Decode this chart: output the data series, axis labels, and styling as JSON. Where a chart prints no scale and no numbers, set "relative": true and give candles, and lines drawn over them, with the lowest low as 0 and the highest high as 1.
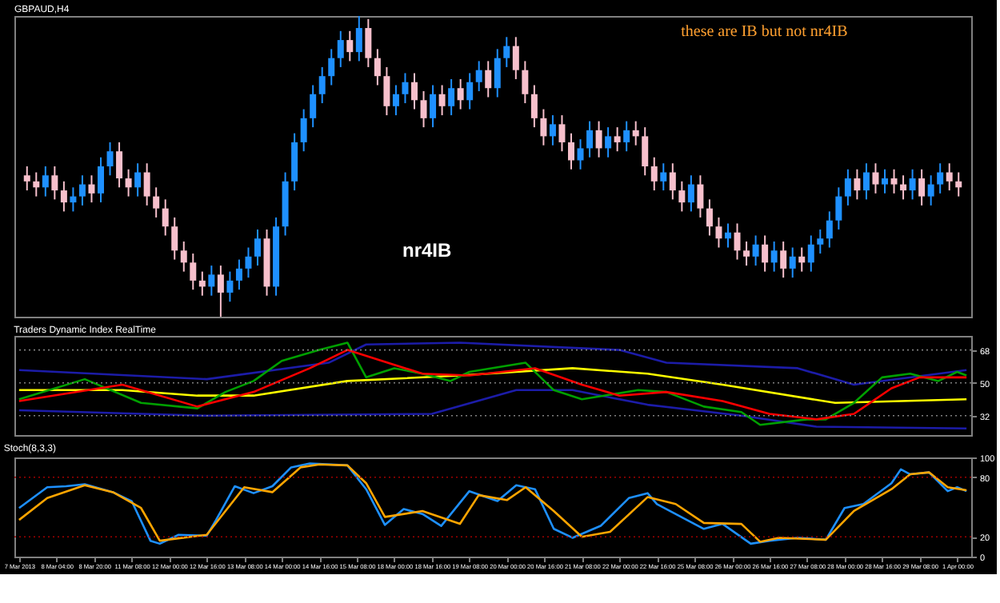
{
  "chart_data": [
    {
      "type": "candlestick",
      "title": "GBPAUD,H4",
      "relative": true,
      "tick_labels": false,
      "categories": [
        null,
        null,
        null,
        null,
        null,
        null,
        null,
        null,
        null,
        null,
        null,
        null,
        null,
        null,
        null,
        null,
        null,
        null,
        null,
        null,
        null,
        null,
        null,
        null,
        null,
        null,
        null,
        null,
        null,
        null,
        null,
        null,
        null,
        null,
        null,
        null,
        null,
        null,
        null,
        null,
        null,
        null,
        null,
        null,
        null,
        null,
        null,
        null,
        null,
        null,
        null,
        null,
        null,
        null,
        null,
        null,
        null,
        null,
        null,
        null,
        null,
        null,
        null,
        null,
        null,
        null,
        null,
        null,
        null,
        null,
        null,
        null,
        null,
        null,
        null,
        null,
        null,
        null,
        null,
        null,
        null,
        null,
        null,
        null,
        null,
        null,
        null,
        null,
        null,
        null,
        null,
        null,
        null,
        null,
        null,
        null,
        null,
        null,
        null,
        null,
        null,
        null
      ],
      "ohlc": [
        [
          0.47,
          0.5,
          0.42,
          0.45
        ],
        [
          0.45,
          0.48,
          0.4,
          0.43
        ],
        [
          0.43,
          0.5,
          0.4,
          0.47
        ],
        [
          0.47,
          0.5,
          0.39,
          0.42
        ],
        [
          0.42,
          0.45,
          0.35,
          0.38
        ],
        [
          0.38,
          0.43,
          0.35,
          0.4
        ],
        [
          0.4,
          0.47,
          0.37,
          0.44
        ],
        [
          0.44,
          0.47,
          0.38,
          0.41
        ],
        [
          0.41,
          0.53,
          0.38,
          0.5
        ],
        [
          0.5,
          0.58,
          0.47,
          0.55
        ],
        [
          0.55,
          0.58,
          0.43,
          0.46
        ],
        [
          0.46,
          0.49,
          0.4,
          0.43
        ],
        [
          0.43,
          0.51,
          0.4,
          0.48
        ],
        [
          0.48,
          0.51,
          0.37,
          0.4
        ],
        [
          0.4,
          0.43,
          0.33,
          0.36
        ],
        [
          0.36,
          0.39,
          0.27,
          0.3
        ],
        [
          0.3,
          0.33,
          0.19,
          0.22
        ],
        [
          0.22,
          0.25,
          0.15,
          0.18
        ],
        [
          0.18,
          0.21,
          0.09,
          0.12
        ],
        [
          0.12,
          0.15,
          0.07,
          0.1
        ],
        [
          0.1,
          0.17,
          0.07,
          0.14
        ],
        [
          0.14,
          0.17,
          0,
          0.08
        ],
        [
          0.08,
          0.15,
          0.05,
          0.12
        ],
        [
          0.12,
          0.19,
          0.09,
          0.16
        ],
        [
          0.16,
          0.23,
          0.13,
          0.2
        ],
        [
          0.2,
          0.29,
          0.17,
          0.26
        ],
        [
          0.26,
          0.29,
          0.07,
          0.1
        ],
        [
          0.1,
          0.33,
          0.07,
          0.3
        ],
        [
          0.3,
          0.48,
          0.27,
          0.45
        ],
        [
          0.45,
          0.61,
          0.42,
          0.58
        ],
        [
          0.58,
          0.69,
          0.55,
          0.66
        ],
        [
          0.66,
          0.77,
          0.63,
          0.74
        ],
        [
          0.74,
          0.83,
          0.71,
          0.8
        ],
        [
          0.8,
          0.89,
          0.77,
          0.86
        ],
        [
          0.86,
          0.95,
          0.83,
          0.92
        ],
        [
          0.92,
          0.95,
          0.85,
          0.88
        ],
        [
          0.88,
          1,
          0.85,
          0.96
        ],
        [
          0.96,
          0.99,
          0.83,
          0.86
        ],
        [
          0.86,
          0.89,
          0.77,
          0.8
        ],
        [
          0.8,
          0.83,
          0.67,
          0.7
        ],
        [
          0.7,
          0.77,
          0.67,
          0.74
        ],
        [
          0.74,
          0.81,
          0.71,
          0.78
        ],
        [
          0.78,
          0.81,
          0.69,
          0.72
        ],
        [
          0.72,
          0.75,
          0.63,
          0.66
        ],
        [
          0.66,
          0.77,
          0.63,
          0.74
        ],
        [
          0.74,
          0.77,
          0.67,
          0.7
        ],
        [
          0.7,
          0.79,
          0.67,
          0.76
        ],
        [
          0.76,
          0.79,
          0.69,
          0.72
        ],
        [
          0.72,
          0.81,
          0.69,
          0.78
        ],
        [
          0.78,
          0.85,
          0.75,
          0.82
        ],
        [
          0.82,
          0.85,
          0.73,
          0.76
        ],
        [
          0.76,
          0.89,
          0.73,
          0.86
        ],
        [
          0.86,
          0.93,
          0.83,
          0.9
        ],
        [
          0.9,
          0.93,
          0.79,
          0.82
        ],
        [
          0.82,
          0.85,
          0.71,
          0.74
        ],
        [
          0.74,
          0.77,
          0.63,
          0.66
        ],
        [
          0.66,
          0.69,
          0.57,
          0.6
        ],
        [
          0.6,
          0.67,
          0.57,
          0.64
        ],
        [
          0.64,
          0.67,
          0.55,
          0.58
        ],
        [
          0.58,
          0.61,
          0.49,
          0.52
        ],
        [
          0.52,
          0.59,
          0.49,
          0.56
        ],
        [
          0.56,
          0.65,
          0.53,
          0.62
        ],
        [
          0.62,
          0.65,
          0.53,
          0.56
        ],
        [
          0.56,
          0.63,
          0.53,
          0.6
        ],
        [
          0.6,
          0.63,
          0.55,
          0.58
        ],
        [
          0.58,
          0.65,
          0.55,
          0.62
        ],
        [
          0.62,
          0.65,
          0.57,
          0.6
        ],
        [
          0.6,
          0.63,
          0.47,
          0.5
        ],
        [
          0.5,
          0.53,
          0.42,
          0.45
        ],
        [
          0.45,
          0.51,
          0.42,
          0.48
        ],
        [
          0.48,
          0.51,
          0.39,
          0.42
        ],
        [
          0.42,
          0.45,
          0.35,
          0.38
        ],
        [
          0.38,
          0.47,
          0.35,
          0.44
        ],
        [
          0.44,
          0.47,
          0.33,
          0.36
        ],
        [
          0.36,
          0.39,
          0.27,
          0.3
        ],
        [
          0.3,
          0.33,
          0.23,
          0.26
        ],
        [
          0.26,
          0.31,
          0.23,
          0.28
        ],
        [
          0.28,
          0.31,
          0.19,
          0.22
        ],
        [
          0.22,
          0.25,
          0.17,
          0.2
        ],
        [
          0.2,
          0.27,
          0.17,
          0.24
        ],
        [
          0.24,
          0.27,
          0.15,
          0.18
        ],
        [
          0.18,
          0.25,
          0.15,
          0.22
        ],
        [
          0.22,
          0.25,
          0.13,
          0.16
        ],
        [
          0.16,
          0.23,
          0.13,
          0.2
        ],
        [
          0.2,
          0.23,
          0.15,
          0.18
        ],
        [
          0.18,
          0.27,
          0.15,
          0.24
        ],
        [
          0.24,
          0.29,
          0.21,
          0.26
        ],
        [
          0.26,
          0.35,
          0.23,
          0.32
        ],
        [
          0.32,
          0.43,
          0.29,
          0.4
        ],
        [
          0.4,
          0.49,
          0.37,
          0.46
        ],
        [
          0.46,
          0.49,
          0.39,
          0.42
        ],
        [
          0.42,
          0.51,
          0.39,
          0.48
        ],
        [
          0.48,
          0.51,
          0.41,
          0.44
        ],
        [
          0.44,
          0.49,
          0.41,
          0.46
        ],
        [
          0.46,
          0.49,
          0.41,
          0.44
        ],
        [
          0.44,
          0.47,
          0.39,
          0.42
        ],
        [
          0.42,
          0.49,
          0.39,
          0.46
        ],
        [
          0.46,
          0.49,
          0.37,
          0.4
        ],
        [
          0.4,
          0.47,
          0.37,
          0.44
        ],
        [
          0.44,
          0.51,
          0.41,
          0.48
        ],
        [
          0.48,
          0.51,
          0.42,
          0.45
        ],
        [
          0.45,
          0.48,
          0.4,
          0.43
        ]
      ],
      "annotations": [
        "these are IB but not nr4IB",
        "nr4IB"
      ]
    },
    {
      "type": "line",
      "title": "Traders Dynamic Index RealTime",
      "tick_labels": "y",
      "ylim": [
        21.4,
        75.7
      ],
      "yticks": [
        32,
        50,
        68
      ],
      "categories": [
        null,
        null,
        null,
        null,
        null,
        null,
        null,
        null,
        null,
        null,
        null,
        null,
        null,
        null,
        null,
        null,
        null,
        null,
        null,
        null,
        null,
        null,
        null,
        null,
        null,
        null,
        null,
        null,
        null,
        null,
        null,
        null,
        null,
        null,
        null,
        null,
        null,
        null,
        null,
        null,
        null,
        null,
        null,
        null,
        null,
        null,
        null,
        null,
        null,
        null,
        null,
        null,
        null,
        null,
        null,
        null,
        null,
        null,
        null,
        null,
        null,
        null,
        null,
        null,
        null,
        null,
        null,
        null,
        null,
        null,
        null,
        null,
        null,
        null,
        null,
        null,
        null,
        null,
        null,
        null,
        null,
        null,
        null,
        null,
        null,
        null,
        null,
        null,
        null,
        null,
        null,
        null,
        null,
        null,
        null,
        null,
        null,
        null,
        null,
        null,
        null,
        null
      ],
      "ref_lines": [
        {
          "axis": "y",
          "value": 68,
          "color": "#808080",
          "line_style": "dotted"
        },
        {
          "axis": "y",
          "value": 50,
          "color": "#808080",
          "line_style": "dotted"
        },
        {
          "axis": "y",
          "value": 32,
          "color": "#808080",
          "line_style": "dotted"
        }
      ],
      "series": [
        {
          "color": "#1c1ca8",
          "values": [
            57,
            null,
            null,
            null,
            null,
            null,
            null,
            null,
            null,
            null,
            null,
            null,
            null,
            null,
            null,
            null,
            null,
            null,
            null,
            null,
            52,
            null,
            null,
            null,
            null,
            null,
            null,
            null,
            null,
            null,
            null,
            null,
            null,
            61,
            null,
            null,
            null,
            71,
            null,
            null,
            null,
            null,
            null,
            null,
            null,
            null,
            null,
            72,
            null,
            null,
            null,
            null,
            null,
            null,
            null,
            null,
            null,
            null,
            null,
            null,
            null,
            null,
            null,
            null,
            68,
            null,
            null,
            null,
            null,
            61,
            null,
            null,
            null,
            null,
            null,
            null,
            null,
            null,
            null,
            null,
            null,
            null,
            null,
            58,
            null,
            null,
            null,
            null,
            null,
            49,
            null,
            null,
            null,
            null,
            null,
            null,
            null,
            null,
            null,
            null,
            null,
            57
          ]
        },
        {
          "color": "#1c1ca8",
          "values": [
            35,
            null,
            null,
            null,
            null,
            null,
            null,
            null,
            null,
            null,
            null,
            null,
            null,
            null,
            null,
            null,
            null,
            null,
            null,
            null,
            32,
            null,
            null,
            null,
            null,
            null,
            null,
            null,
            null,
            null,
            null,
            null,
            null,
            null,
            null,
            null,
            null,
            null,
            null,
            null,
            null,
            null,
            null,
            null,
            33,
            null,
            null,
            null,
            null,
            null,
            null,
            null,
            null,
            46,
            null,
            null,
            null,
            null,
            null,
            46,
            null,
            null,
            null,
            null,
            null,
            null,
            null,
            38,
            null,
            null,
            null,
            null,
            null,
            null,
            null,
            null,
            null,
            32,
            null,
            null,
            null,
            null,
            null,
            null,
            null,
            26,
            null,
            null,
            null,
            null,
            null,
            null,
            null,
            null,
            null,
            null,
            null,
            null,
            null,
            null,
            null,
            25
          ]
        },
        {
          "color": "#ffff00",
          "values": [
            46,
            null,
            null,
            null,
            null,
            null,
            null,
            null,
            null,
            null,
            null,
            46,
            null,
            null,
            null,
            null,
            null,
            null,
            null,
            43,
            null,
            null,
            null,
            null,
            null,
            43,
            null,
            null,
            null,
            null,
            null,
            null,
            null,
            null,
            null,
            51,
            null,
            null,
            null,
            null,
            null,
            null,
            null,
            null,
            null,
            null,
            null,
            54,
            null,
            null,
            null,
            null,
            null,
            null,
            null,
            null,
            null,
            null,
            null,
            58,
            null,
            null,
            null,
            null,
            null,
            null,
            null,
            55,
            null,
            null,
            null,
            null,
            null,
            null,
            null,
            49,
            null,
            null,
            null,
            null,
            null,
            null,
            null,
            null,
            null,
            null,
            null,
            39,
            null,
            null,
            null,
            null,
            null,
            null,
            null,
            null,
            null,
            null,
            null,
            null,
            null,
            41
          ]
        },
        {
          "color": "#00a000",
          "values": [
            41,
            null,
            null,
            null,
            null,
            null,
            null,
            52,
            null,
            null,
            null,
            null,
            null,
            39,
            null,
            null,
            null,
            null,
            null,
            36,
            null,
            null,
            45,
            null,
            null,
            51,
            null,
            null,
            62,
            null,
            null,
            null,
            68,
            null,
            null,
            72,
            null,
            53,
            null,
            null,
            58,
            null,
            null,
            55,
            null,
            null,
            51,
            null,
            56,
            null,
            null,
            null,
            null,
            null,
            61,
            null,
            null,
            46,
            null,
            null,
            41,
            null,
            null,
            null,
            null,
            null,
            46,
            null,
            null,
            45,
            null,
            null,
            null,
            37,
            null,
            null,
            null,
            34,
            null,
            27,
            null,
            null,
            null,
            null,
            30,
            null,
            30,
            null,
            null,
            39,
            null,
            null,
            53,
            null,
            null,
            55,
            null,
            null,
            51,
            null,
            56,
            54
          ]
        },
        {
          "color": "#ff0000",
          "values": [
            40,
            null,
            null,
            null,
            null,
            null,
            null,
            null,
            null,
            null,
            null,
            49,
            null,
            null,
            null,
            null,
            null,
            null,
            null,
            37,
            null,
            null,
            null,
            null,
            null,
            45,
            null,
            null,
            null,
            null,
            null,
            58,
            null,
            null,
            null,
            68,
            null,
            null,
            null,
            null,
            null,
            null,
            null,
            55,
            null,
            null,
            null,
            null,
            54,
            null,
            null,
            null,
            null,
            null,
            null,
            58,
            null,
            null,
            null,
            null,
            49,
            null,
            null,
            null,
            43,
            null,
            null,
            null,
            null,
            45,
            null,
            null,
            null,
            null,
            null,
            40,
            null,
            null,
            null,
            null,
            33,
            null,
            null,
            null,
            null,
            30,
            null,
            null,
            null,
            33,
            null,
            null,
            null,
            47,
            null,
            null,
            53,
            null,
            null,
            null,
            null,
            53
          ]
        }
      ]
    },
    {
      "type": "line",
      "title": "Stoch(8,3,3)",
      "ylim": [
        0,
        100
      ],
      "yticks": [
        0,
        20,
        80,
        100
      ],
      "categories": [
        "7 Mar 2013",
        null,
        null,
        null,
        "8 Mar 04:00",
        null,
        null,
        null,
        "8 Mar 20:00",
        null,
        null,
        null,
        "11 Mar 08:00",
        null,
        null,
        null,
        "12 Mar 00:00",
        null,
        null,
        null,
        "12 Mar 16:00",
        null,
        null,
        null,
        "13 Mar 08:00",
        null,
        null,
        null,
        "14 Mar 00:00",
        null,
        null,
        null,
        "14 Mar 16:00",
        null,
        null,
        null,
        "15 Mar 08:00",
        null,
        null,
        null,
        "18 Mar 00:00",
        null,
        null,
        null,
        "18 Mar 16:00",
        null,
        null,
        null,
        "19 Mar 08:00",
        null,
        null,
        null,
        "20 Mar 00:00",
        null,
        null,
        null,
        "20 Mar 16:00",
        null,
        null,
        null,
        "21 Mar 08:00",
        null,
        null,
        null,
        "22 Mar 00:00",
        null,
        null,
        null,
        "22 Mar 16:00",
        null,
        null,
        null,
        "25 Mar 08:00",
        null,
        null,
        null,
        "26 Mar 00:00",
        null,
        null,
        null,
        "26 Mar 16:00",
        null,
        null,
        null,
        "27 Mar 08:00",
        null,
        null,
        null,
        "28 Mar 00:00",
        null,
        null,
        null,
        "28 Mar 16:00",
        null,
        null,
        null,
        "29 Mar 08:00",
        null,
        null,
        null,
        "1 Apr 00:00",
        null
      ],
      "ref_lines": [
        {
          "axis": "y",
          "value": 80,
          "color": "#a00000",
          "line_style": "dotted"
        },
        {
          "axis": "y",
          "value": 20,
          "color": "#a00000",
          "line_style": "dotted"
        }
      ],
      "series": [
        {
          "color": "#1e90ff",
          "values": [
            49,
            null,
            null,
            70,
            null,
            71,
            null,
            73,
            null,
            null,
            65,
            null,
            56,
            null,
            16,
            13,
            null,
            22,
            null,
            null,
            21,
            37,
            null,
            71,
            null,
            64,
            null,
            71,
            null,
            90,
            null,
            94,
            null,
            null,
            null,
            92,
            null,
            68,
            null,
            32,
            null,
            48,
            null,
            43,
            null,
            31,
            null,
            null,
            66,
            null,
            null,
            56,
            null,
            72,
            null,
            68,
            null,
            28,
            null,
            19,
            null,
            null,
            31,
            null,
            null,
            59,
            null,
            64,
            53,
            null,
            null,
            null,
            null,
            28,
            null,
            33,
            null,
            null,
            13,
            null,
            16,
            null,
            null,
            19,
            null,
            null,
            17,
            null,
            49,
            null,
            53,
            null,
            null,
            74,
            88,
            83,
            null,
            85,
            null,
            66,
            70,
            66
          ]
        },
        {
          "color": "#ffa500",
          "values": [
            37,
            null,
            null,
            59,
            null,
            null,
            null,
            72,
            null,
            null,
            65,
            null,
            null,
            49,
            null,
            16,
            null,
            null,
            null,
            null,
            22,
            null,
            46,
            null,
            70,
            null,
            null,
            65,
            null,
            null,
            90,
            null,
            93,
            null,
            null,
            92,
            null,
            74,
            null,
            40,
            null,
            null,
            null,
            46,
            null,
            null,
            null,
            33,
            null,
            62,
            null,
            null,
            57,
            null,
            70,
            null,
            null,
            46,
            null,
            null,
            20,
            null,
            null,
            25,
            null,
            null,
            null,
            60,
            null,
            null,
            53,
            null,
            null,
            34,
            null,
            null,
            null,
            33,
            null,
            15,
            null,
            19,
            null,
            null,
            null,
            null,
            17,
            null,
            null,
            46,
            null,
            null,
            null,
            68,
            null,
            83,
            null,
            85,
            null,
            70,
            null,
            67
          ]
        }
      ]
    }
  ]
}
